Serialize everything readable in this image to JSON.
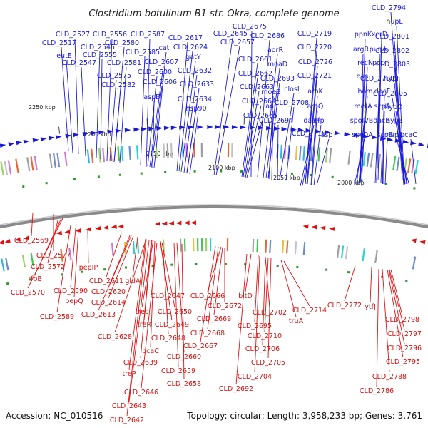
{
  "title": "Clostridium botulinum B1 str. Okra, complete genome",
  "footer": {
    "accession": "Accession: NC_010516",
    "topology": "Topology: circular; Length: 3,958,233 bp; Genes: 3,761"
  },
  "ticks": [
    "2250 kbp",
    "2200 kbp",
    "2150 kbp",
    "2100 kbp",
    "2050 kbp",
    "2000 kbp"
  ],
  "colors": {
    "forward": "#1a1ad6",
    "reverse": "#e01010",
    "backbone": "#8a8a8a",
    "gc": "#2a9a2a"
  },
  "top_labels": [
    "CLD_2794",
    "hupL",
    "CLD_2801",
    "CLD_2802",
    "CLD_2803",
    "hypF",
    "CLD_2805",
    "hypD",
    "hypE",
    "hupS",
    "pcaC",
    "ppnK",
    "xerD",
    "argR",
    "punA",
    "recN",
    "pdp",
    "dxs",
    "CLD_2780",
    "hom",
    "dacF",
    "metA",
    "scpA",
    "spoIVB",
    "dacB",
    "spo0A",
    "scpB",
    "CLD_2719",
    "CLD_2720",
    "CLD_2726",
    "CLD_2721",
    "aroK",
    "aroQ",
    "efp",
    "asp",
    "dapF",
    "CLD_2718",
    "CLD_2675",
    "CLD_2686",
    "aorR",
    "moaD",
    "CLD_2693",
    "moeB",
    "closI",
    "aor",
    "CLD_2708",
    "CLD_2694",
    "CLD_2645",
    "CLD_2657",
    "CLD_2661",
    "CLD_2662",
    "CLD_2663",
    "CLD_2664",
    "CLD_2665",
    "CLD_2617",
    "CLD_2624",
    "gatY",
    "CLD_2632",
    "CLD_2633",
    "CLD_2634",
    "hsp90",
    "CLD_2587",
    "cat",
    "CLD_2585",
    "CLD_2607",
    "CLD_2600",
    "CLD_2606",
    "aspB",
    "CLD_2556",
    "CLD_2580",
    "CLD_2581",
    "CLD_2555",
    "CLD_2575",
    "CLD_2582",
    "CLD_2527",
    "CLD_2517",
    "eutE",
    "CLD_2545",
    "CLD_2547"
  ],
  "bottom_labels": [
    "CLD_2569",
    "CLD_2577",
    "CLD_2572",
    "rfbB",
    "CLD_2570",
    "pepIP",
    "CLD_2590",
    "pepQ",
    "CLD_2589",
    "CLD_2611",
    "CLD_2620",
    "gldA",
    "CLD_2614",
    "CLD_2613",
    "CLD_2647",
    "trec",
    "CLD_2650",
    "treR",
    "CLD_2649",
    "CLD_2628",
    "CLD_2648",
    "pcaC",
    "CLD_2639",
    "treP",
    "CLD_2646",
    "CLD_2643",
    "CLD_2642",
    "CLD_2666",
    "CLD_2672",
    "CLD_2669",
    "CLD_2668",
    "CLD_2667",
    "CLD_2660",
    "CLD_2659",
    "CLD_2658",
    "bltD",
    "CLD_2702",
    "CLD_2695",
    "CLD_2710",
    "CLD_2706",
    "CLD_2705",
    "CLD_2704",
    "CLD_2692",
    "truA",
    "CLD_2714",
    "CLD_2772",
    "ytfJ",
    "CLD_2798",
    "CLD_2797",
    "CLD_2796",
    "CLD_2795",
    "CLD_2788",
    "CLD_2786"
  ]
}
